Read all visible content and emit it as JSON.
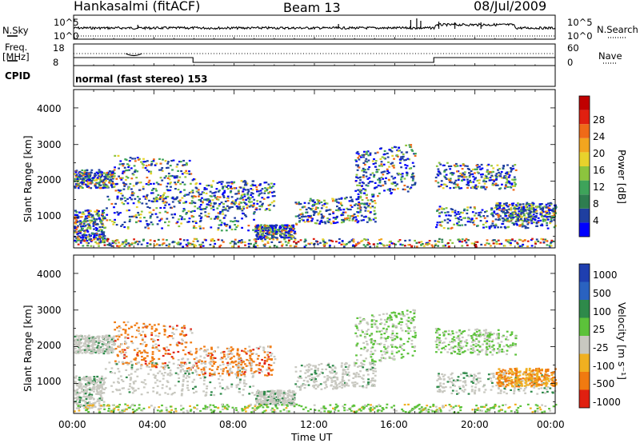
{
  "header": {
    "station": "Hankasalmi (fitACF)",
    "beam": "Beam 13",
    "date": "08/Jul/2009"
  },
  "strips": {
    "nsky_label": "N.Sky",
    "nsky_ticks": [
      "10^5",
      "10^0"
    ],
    "nsearch_label": "N.Search",
    "nsearch_ticks": [
      "10^5",
      "10^0"
    ],
    "freq_label_1": "Freq.",
    "freq_label_2": "[MHz]",
    "freq_ticks": [
      "18",
      "8"
    ],
    "nave_label": "Nave",
    "nave_ticks": [
      "60",
      "0"
    ],
    "cpid_label": "CPID",
    "cpid_text": "normal (fast stereo) 153"
  },
  "chart_data": [
    {
      "type": "heatmap",
      "name": "power",
      "ylabel": "Slant Range [km]",
      "xlabel": "Time UT",
      "ylim": [
        180,
        4500
      ],
      "xlim": [
        0,
        24
      ],
      "yticks": [
        "1000",
        "2000",
        "3000",
        "4000"
      ],
      "colorbar_label": "Power [dB]",
      "colorbar_ticks": [
        "4",
        "8",
        "12",
        "16",
        "20",
        "24",
        "28"
      ],
      "colorbar_colors": [
        "#0000ff",
        "#1f3fa0",
        "#2e7d4f",
        "#3ea35a",
        "#8cc43e",
        "#e8d22c",
        "#f2a51f",
        "#ef6a18",
        "#e02010",
        "#c00000"
      ]
    },
    {
      "type": "heatmap",
      "name": "velocity",
      "ylabel": "Slant Range [km]",
      "xlabel": "Time UT",
      "ylim": [
        180,
        4500
      ],
      "xlim": [
        0,
        24
      ],
      "yticks": [
        "1000",
        "2000",
        "3000",
        "4000"
      ],
      "colorbar_label": "Velocity [m s⁻¹]",
      "colorbar_ticks": [
        "1000",
        "500",
        "100",
        "25",
        "-25",
        "-100",
        "-500",
        "-1000"
      ],
      "colorbar_colors": [
        "#1f3fb0",
        "#2a62c0",
        "#2e8a4a",
        "#5cc23a",
        "#c8c8c0",
        "#f0b020",
        "#f07a10",
        "#e02010"
      ]
    }
  ],
  "x_axis": {
    "ticks": [
      "00:00",
      "04:00",
      "08:00",
      "12:00",
      "16:00",
      "20:00",
      "00:00"
    ],
    "label": "Time UT"
  }
}
